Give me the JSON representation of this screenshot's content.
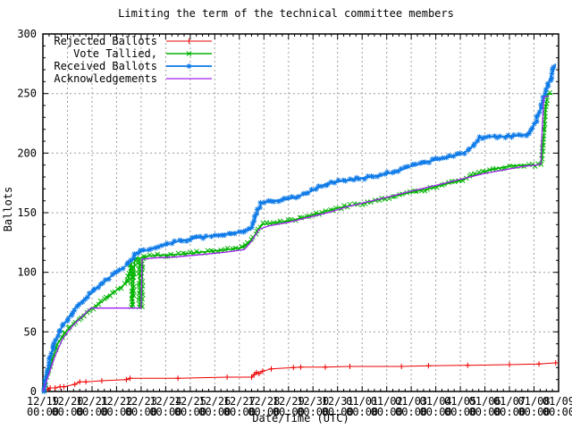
{
  "chart_data": {
    "type": "line",
    "title": "Limiting the term of the technical committee members",
    "xlabel": "Date/Time (UTC)",
    "ylabel": "Ballots",
    "ylim": [
      0,
      300
    ],
    "x_days": 21,
    "y_ticks": [
      0,
      50,
      100,
      150,
      200,
      250,
      300
    ],
    "y_minor_step": 10,
    "x_minor_step": 0.25,
    "grid": true,
    "grid_color": "#9e9e9e",
    "legend_position": "top-left",
    "x_ticks": [
      {
        "date": "12/19",
        "time": "00:00"
      },
      {
        "date": "12/20",
        "time": "00:00"
      },
      {
        "date": "12/21",
        "time": "00:00"
      },
      {
        "date": "12/22",
        "time": "00:00"
      },
      {
        "date": "12/23",
        "time": "00:00"
      },
      {
        "date": "12/24",
        "time": "00:00"
      },
      {
        "date": "12/25",
        "time": "00:00"
      },
      {
        "date": "12/26",
        "time": "00:00"
      },
      {
        "date": "12/27",
        "time": "00:00"
      },
      {
        "date": "12/28",
        "time": "00:00"
      },
      {
        "date": "12/29",
        "time": "00:00"
      },
      {
        "date": "12/30",
        "time": "00:00"
      },
      {
        "date": "12/31",
        "time": "00:00"
      },
      {
        "date": "01/01",
        "time": "00:00"
      },
      {
        "date": "01/02",
        "time": "00:00"
      },
      {
        "date": "01/03",
        "time": "00:00"
      },
      {
        "date": "01/04",
        "time": "00:00"
      },
      {
        "date": "01/05",
        "time": "00:00"
      },
      {
        "date": "01/06",
        "time": "00:00"
      },
      {
        "date": "01/07",
        "time": "00:00"
      },
      {
        "date": "01/08",
        "time": "00:00"
      },
      {
        "date": "01/09",
        "time": "00:00"
      }
    ],
    "series": [
      {
        "name": "Rejected Ballots",
        "color": "#ee0000",
        "marker": "plus",
        "marker_mode": "points",
        "points": [
          [
            0,
            0
          ],
          [
            0.2,
            2
          ],
          [
            0.3,
            3
          ],
          [
            0.5,
            3
          ],
          [
            0.7,
            4
          ],
          [
            0.85,
            4
          ],
          [
            1.3,
            6
          ],
          [
            1.5,
            8
          ],
          [
            1.75,
            8
          ],
          [
            2.4,
            9
          ],
          [
            3.4,
            10
          ],
          [
            3.55,
            11
          ],
          [
            5.5,
            11
          ],
          [
            7.5,
            12
          ],
          [
            8.5,
            12
          ],
          [
            8.6,
            14
          ],
          [
            8.7,
            16
          ],
          [
            8.8,
            15
          ],
          [
            8.95,
            17
          ],
          [
            9.3,
            19
          ],
          [
            10.2,
            20
          ],
          [
            10.5,
            20.5
          ],
          [
            11.5,
            20.5
          ],
          [
            12.5,
            21
          ],
          [
            14.6,
            21
          ],
          [
            15.7,
            21.5
          ],
          [
            17.3,
            22
          ],
          [
            19,
            22.5
          ],
          [
            20.2,
            23
          ],
          [
            20.88,
            24
          ]
        ]
      },
      {
        "name": "Vote Tallied,",
        "color": "#00b400",
        "marker": "cross",
        "marker_mode": "dense",
        "points": [
          [
            0,
            0
          ],
          [
            0.2,
            14
          ],
          [
            0.4,
            28
          ],
          [
            0.6,
            40
          ],
          [
            0.85,
            48
          ],
          [
            1.1,
            54
          ],
          [
            1.4,
            60
          ],
          [
            1.75,
            66
          ],
          [
            2.1,
            71
          ],
          [
            2.45,
            76
          ],
          [
            2.8,
            82
          ],
          [
            3.15,
            87
          ],
          [
            3.45,
            92
          ],
          [
            3.6,
            107
          ],
          [
            3.64,
            70
          ],
          [
            3.74,
            112
          ],
          [
            3.92,
            112
          ],
          [
            3.95,
            70
          ],
          [
            4.02,
            70
          ],
          [
            4.06,
            113
          ],
          [
            4.5,
            114
          ],
          [
            5.5,
            115
          ],
          [
            6.5,
            117
          ],
          [
            7.5,
            119
          ],
          [
            8.2,
            121
          ],
          [
            8.5,
            127
          ],
          [
            8.75,
            135
          ],
          [
            8.9,
            140
          ],
          [
            9.3,
            141
          ],
          [
            10,
            143
          ],
          [
            10.6,
            146
          ],
          [
            11,
            148
          ],
          [
            11.5,
            151
          ],
          [
            12,
            154
          ],
          [
            12.8,
            157
          ],
          [
            13.5,
            160
          ],
          [
            14.3,
            164
          ],
          [
            15,
            167
          ],
          [
            15.7,
            170
          ],
          [
            16.4,
            174
          ],
          [
            17,
            177
          ],
          [
            17.6,
            182
          ],
          [
            18.2,
            186
          ],
          [
            19,
            189
          ],
          [
            19.6,
            190
          ],
          [
            20.1,
            190
          ],
          [
            20.3,
            191
          ],
          [
            20.4,
            215
          ],
          [
            20.48,
            240
          ],
          [
            20.55,
            249
          ],
          [
            20.75,
            250
          ]
        ]
      },
      {
        "name": "Received Ballots",
        "color": "#0d7ae8",
        "marker": "star",
        "marker_mode": "dense",
        "points": [
          [
            0,
            0
          ],
          [
            0.15,
            14
          ],
          [
            0.35,
            32
          ],
          [
            0.55,
            45
          ],
          [
            0.8,
            55
          ],
          [
            1.05,
            62
          ],
          [
            1.3,
            70
          ],
          [
            1.6,
            76
          ],
          [
            1.9,
            81
          ],
          [
            2.2,
            87
          ],
          [
            2.6,
            94
          ],
          [
            3,
            100
          ],
          [
            3.35,
            105
          ],
          [
            3.65,
            110
          ],
          [
            3.7,
            113
          ],
          [
            3.78,
            116
          ],
          [
            4.1,
            118
          ],
          [
            4.8,
            122
          ],
          [
            5.5,
            126
          ],
          [
            6.3,
            129
          ],
          [
            7,
            131
          ],
          [
            7.7,
            133
          ],
          [
            8.45,
            136
          ],
          [
            8.6,
            142
          ],
          [
            8.75,
            152
          ],
          [
            8.9,
            158
          ],
          [
            9.3,
            160
          ],
          [
            9.9,
            161
          ],
          [
            10.3,
            163
          ],
          [
            10.7,
            166
          ],
          [
            11.1,
            170
          ],
          [
            11.5,
            174
          ],
          [
            11.9,
            176
          ],
          [
            12.4,
            177
          ],
          [
            13,
            179
          ],
          [
            13.6,
            181
          ],
          [
            14.3,
            184
          ],
          [
            15,
            189
          ],
          [
            15.7,
            193
          ],
          [
            16.4,
            196
          ],
          [
            17,
            199
          ],
          [
            17.3,
            202
          ],
          [
            17.6,
            208
          ],
          [
            17.8,
            213
          ],
          [
            18.3,
            214
          ],
          [
            19,
            214
          ],
          [
            19.6,
            215
          ],
          [
            19.9,
            219
          ],
          [
            20.1,
            228
          ],
          [
            20.3,
            240
          ],
          [
            20.5,
            253
          ],
          [
            20.7,
            265
          ],
          [
            20.88,
            275
          ]
        ]
      },
      {
        "name": "Acknowledgements",
        "color": "#a020f0",
        "marker": "none",
        "marker_mode": "none",
        "points": [
          [
            0,
            0
          ],
          [
            0.2,
            12
          ],
          [
            0.5,
            30
          ],
          [
            0.8,
            44
          ],
          [
            1.05,
            51
          ],
          [
            1.3,
            57
          ],
          [
            1.6,
            63
          ],
          [
            1.85,
            68
          ],
          [
            1.95,
            70
          ],
          [
            4,
            70
          ],
          [
            4.04,
            111
          ],
          [
            4.5,
            112
          ],
          [
            5.5,
            113
          ],
          [
            6.5,
            115
          ],
          [
            7.5,
            117
          ],
          [
            8.2,
            119
          ],
          [
            8.5,
            126
          ],
          [
            8.8,
            136
          ],
          [
            9.2,
            139
          ],
          [
            10,
            142
          ],
          [
            10.8,
            146
          ],
          [
            11.6,
            150
          ],
          [
            12.4,
            155
          ],
          [
            13.2,
            159
          ],
          [
            14,
            163
          ],
          [
            14.8,
            167
          ],
          [
            15.6,
            171
          ],
          [
            16.4,
            175
          ],
          [
            17.2,
            179
          ],
          [
            18,
            183
          ],
          [
            18.8,
            186
          ],
          [
            19.6,
            189
          ],
          [
            20.1,
            190
          ],
          [
            20.28,
            191
          ],
          [
            20.33,
            220
          ],
          [
            20.4,
            247
          ],
          [
            20.6,
            248
          ]
        ]
      }
    ]
  }
}
